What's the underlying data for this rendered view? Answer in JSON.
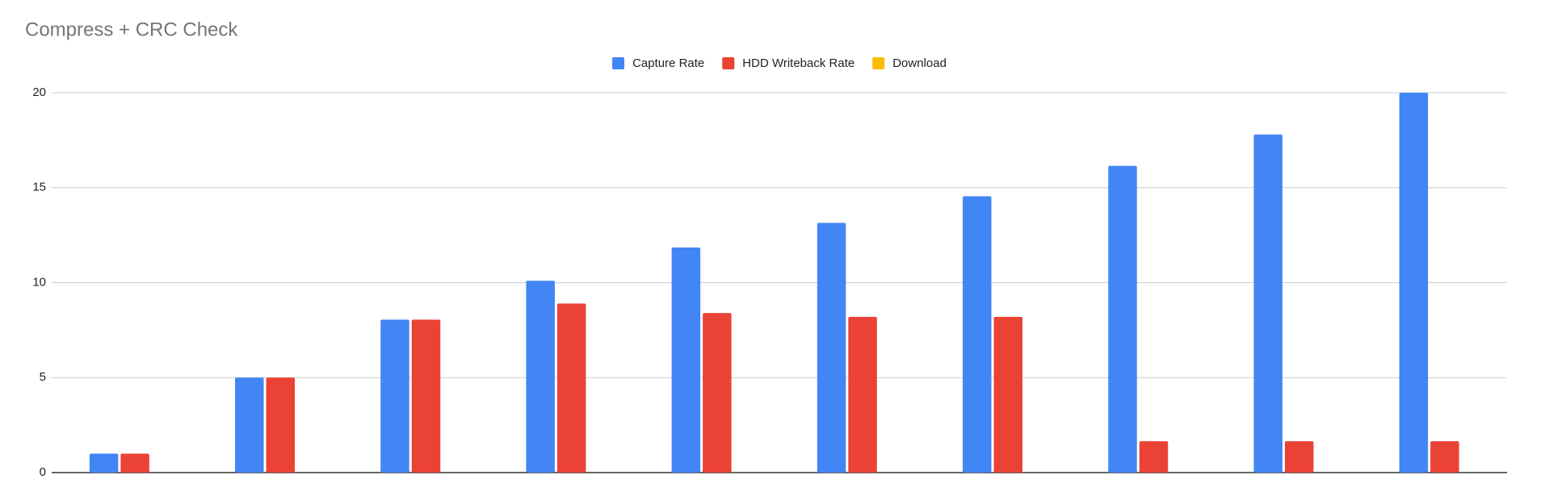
{
  "chart_data": {
    "type": "bar",
    "title": "Compress + CRC Check",
    "categories": [
      null,
      null,
      null,
      null,
      null,
      null,
      null,
      null,
      null,
      null
    ],
    "series": [
      {
        "name": "Capture Rate",
        "color": "#4285f4",
        "values": [
          1,
          5,
          8.05,
          10.1,
          11.85,
          13.15,
          14.55,
          16.15,
          17.8,
          20
        ]
      },
      {
        "name": "HDD Writeback Rate",
        "color": "#ea4335",
        "values": [
          1,
          5,
          8.05,
          8.9,
          8.4,
          8.2,
          8.2,
          1.65,
          1.65,
          1.65
        ]
      },
      {
        "name": "Download",
        "color": "#fbbc04",
        "values": [
          null,
          null,
          null,
          null,
          null,
          null,
          null,
          null,
          null,
          null
        ]
      }
    ],
    "ylim": [
      0,
      20
    ],
    "yticks": [
      0,
      5,
      10,
      15,
      20
    ],
    "grid": true,
    "legend": "top"
  }
}
